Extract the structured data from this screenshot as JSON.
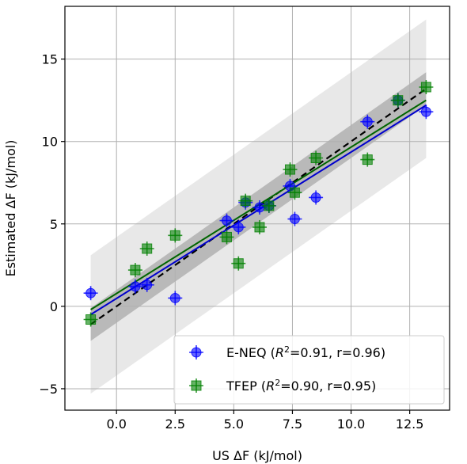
{
  "chart_data": {
    "type": "scatter",
    "title": "",
    "xlabel": "US ΔF (kJ/mol)",
    "ylabel": "Estimated ΔF (kJ/mol)",
    "xlim": [
      -2.2,
      14.2
    ],
    "ylim": [
      -6.3,
      18.2
    ],
    "xticks": [
      0.0,
      2.5,
      5.0,
      7.5,
      10.0,
      12.5
    ],
    "xtick_labels": [
      "0.0",
      "2.5",
      "5.0",
      "7.5",
      "10.0",
      "12.5"
    ],
    "yticks": [
      -5,
      0,
      5,
      10,
      15
    ],
    "ytick_labels": [
      "−5",
      "0",
      "5",
      "10",
      "15"
    ],
    "grid": true,
    "legend_position": "lower-right",
    "series": [
      {
        "name": "E-NEQ",
        "legend_prefix": "E-NEQ (",
        "legend_r2": "R",
        "legend_r2_sup": "2",
        "legend_suffix": "=0.91, r=0.96)",
        "marker": "circle",
        "color": "#0000ff",
        "x": [
          -1.1,
          0.8,
          1.3,
          2.5,
          4.7,
          5.2,
          5.5,
          6.1,
          6.5,
          7.4,
          7.6,
          8.5,
          10.7,
          12.0,
          13.2
        ],
        "y": [
          0.8,
          1.2,
          1.3,
          0.5,
          5.2,
          4.8,
          6.3,
          6.0,
          6.1,
          7.3,
          5.3,
          6.6,
          11.2,
          12.5,
          11.8
        ],
        "fit": {
          "x": [
            -1.1,
            13.2
          ],
          "y": [
            -0.5,
            12.2
          ],
          "color": "#0000cc"
        }
      },
      {
        "name": "TFEP",
        "legend_prefix": "TFEP (",
        "legend_r2": "R",
        "legend_r2_sup": "2",
        "legend_suffix": "=0.90, r=0.95)",
        "marker": "square",
        "color": "#008000",
        "x": [
          -1.1,
          0.8,
          1.3,
          2.5,
          4.7,
          5.2,
          5.5,
          6.1,
          6.5,
          7.4,
          7.6,
          8.5,
          10.7,
          12.0,
          13.2
        ],
        "y": [
          -0.8,
          2.2,
          3.5,
          4.3,
          4.2,
          2.6,
          6.4,
          4.8,
          6.1,
          8.3,
          6.9,
          9.0,
          8.9,
          12.5,
          13.3
        ],
        "fit": {
          "x": [
            -1.1,
            13.2
          ],
          "y": [
            -0.2,
            12.5
          ],
          "color": "#006400"
        }
      }
    ],
    "reference_line": {
      "x": [
        -1.1,
        13.2
      ],
      "y": [
        -1.1,
        13.2
      ],
      "style": "dashed",
      "color": "#000000"
    },
    "bands": [
      {
        "name": "outer",
        "x": [
          -1.1,
          13.2
        ],
        "lower": [
          -5.3,
          9.0
        ],
        "upper": [
          3.1,
          17.4
        ],
        "color": "#e5e5e5"
      },
      {
        "name": "inner",
        "x": [
          -1.1,
          13.2
        ],
        "lower": [
          -2.1,
          12.2
        ],
        "upper": [
          -0.1,
          14.2
        ],
        "color": "#a9a9a9"
      }
    ]
  }
}
